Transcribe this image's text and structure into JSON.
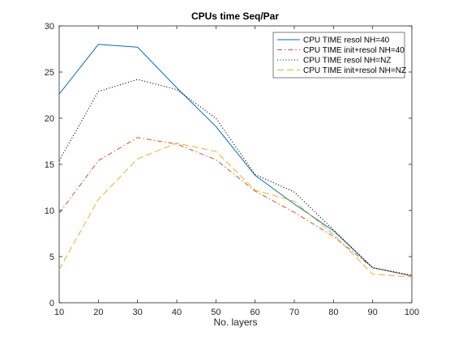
{
  "chart_data": {
    "type": "line",
    "title": "CPUs time Seq/Par",
    "xlabel": "No. layers",
    "ylabel": "",
    "xlim": [
      10,
      100
    ],
    "ylim": [
      0,
      30
    ],
    "xticks": [
      10,
      20,
      30,
      40,
      50,
      60,
      70,
      80,
      90,
      100
    ],
    "yticks": [
      0,
      5,
      10,
      15,
      20,
      25,
      30
    ],
    "grid": false,
    "legend_position": "top-right",
    "x": [
      10,
      20,
      30,
      40,
      50,
      60,
      70,
      80,
      90,
      100
    ],
    "series": [
      {
        "name": "CPU TIME resol NH=40",
        "values": [
          22.6,
          28.0,
          27.7,
          23.3,
          19.1,
          13.8,
          10.7,
          7.8,
          3.8,
          2.9
        ],
        "color": "#0072BD",
        "style": "solid"
      },
      {
        "name": "CPU TIME init+resol NH=40",
        "values": [
          9.7,
          15.4,
          17.9,
          17.2,
          15.5,
          12.1,
          9.8,
          7.2,
          3.8,
          2.9
        ],
        "color": "#D95319",
        "style": "dashdot"
      },
      {
        "name": "CPU TIME resol NH=NZ",
        "values": [
          15.4,
          22.9,
          24.2,
          23.1,
          20.0,
          13.9,
          12.0,
          7.9,
          3.8,
          3.0
        ],
        "color": "#000000",
        "style": "dotted"
      },
      {
        "name": "CPU TIME init+resol NH=NZ",
        "values": [
          3.6,
          11.2,
          15.6,
          17.3,
          16.4,
          12.2,
          11.0,
          7.4,
          3.1,
          2.8
        ],
        "color": "#EDB120",
        "style": "dashed"
      }
    ]
  }
}
